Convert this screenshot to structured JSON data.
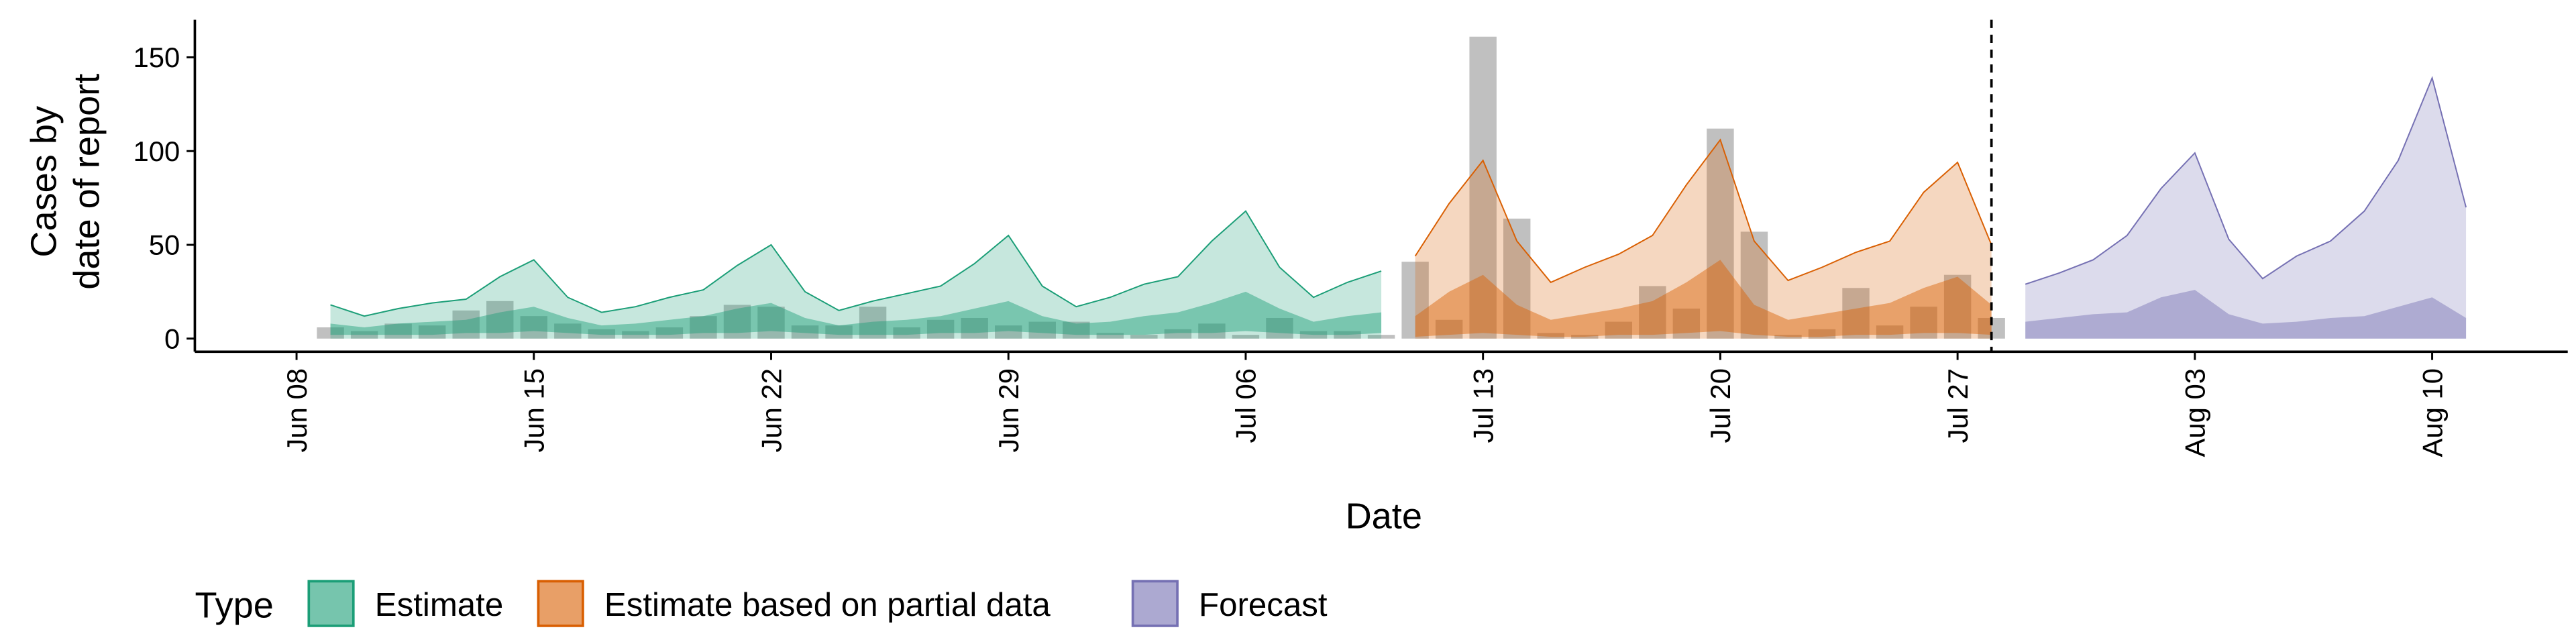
{
  "chart_data": {
    "type": "ribbon",
    "ylabel": [
      "Cases by",
      "date of report"
    ],
    "xlabel": "Date",
    "legend_title": "Type",
    "xlim": [
      "Jun 05",
      "Aug 14"
    ],
    "xticks": [
      "Jun 08",
      "Jun 15",
      "Jun 22",
      "Jun 29",
      "Jul 06",
      "Jul 13",
      "Jul 20",
      "Jul 27",
      "Aug 03",
      "Aug 10"
    ],
    "ylim": [
      -7,
      170
    ],
    "yticks": [
      0,
      50,
      100,
      150
    ],
    "date_line": "Jul 28",
    "bars": {
      "color": "#8c8c8c",
      "x": [
        "Jun 09",
        "Jun 10",
        "Jun 11",
        "Jun 12",
        "Jun 13",
        "Jun 14",
        "Jun 15",
        "Jun 16",
        "Jun 17",
        "Jun 18",
        "Jun 19",
        "Jun 20",
        "Jun 21",
        "Jun 22",
        "Jun 23",
        "Jun 24",
        "Jun 25",
        "Jun 26",
        "Jun 27",
        "Jun 28",
        "Jun 29",
        "Jun 30",
        "Jul 01",
        "Jul 02",
        "Jul 03",
        "Jul 04",
        "Jul 05",
        "Jul 06",
        "Jul 07",
        "Jul 08",
        "Jul 09",
        "Jul 10",
        "Jul 11",
        "Jul 12",
        "Jul 13",
        "Jul 14",
        "Jul 15",
        "Jul 16",
        "Jul 17",
        "Jul 18",
        "Jul 19",
        "Jul 20",
        "Jul 21",
        "Jul 22",
        "Jul 23",
        "Jul 24",
        "Jul 25",
        "Jul 26",
        "Jul 27",
        "Jul 28"
      ],
      "values": [
        6,
        4,
        8,
        7,
        15,
        20,
        12,
        8,
        5,
        4,
        6,
        12,
        18,
        17,
        7,
        7,
        17,
        6,
        10,
        11,
        7,
        9,
        9,
        3,
        2,
        5,
        8,
        2,
        11,
        4,
        4,
        2,
        41,
        10,
        161,
        64,
        3,
        2,
        9,
        28,
        16,
        112,
        57,
        2,
        5,
        27,
        7,
        17,
        34,
        11
      ]
    },
    "series": [
      {
        "name": "Estimate",
        "color": "#1b9e77",
        "x": [
          "Jun 09",
          "Jun 10",
          "Jun 11",
          "Jun 12",
          "Jun 13",
          "Jun 14",
          "Jun 15",
          "Jun 16",
          "Jun 17",
          "Jun 18",
          "Jun 19",
          "Jun 20",
          "Jun 21",
          "Jun 22",
          "Jun 23",
          "Jun 24",
          "Jun 25",
          "Jun 26",
          "Jun 27",
          "Jun 28",
          "Jun 29",
          "Jun 30",
          "Jul 01",
          "Jul 02",
          "Jul 03",
          "Jul 04",
          "Jul 05",
          "Jul 06",
          "Jul 07",
          "Jul 08",
          "Jul 09",
          "Jul 10"
        ],
        "ribbons": [
          {
            "lower": [
              0,
              0,
              0,
              0,
              0,
              0,
              0,
              0,
              0,
              0,
              0,
              0,
              0,
              0,
              0,
              0,
              0,
              0,
              0,
              0,
              0,
              0,
              0,
              0,
              0,
              0,
              0,
              0,
              0,
              0,
              0,
              0
            ],
            "upper": [
              18,
              12,
              16,
              19,
              21,
              33,
              42,
              22,
              14,
              17,
              22,
              26,
              39,
              50,
              25,
              15,
              20,
              24,
              28,
              40,
              55,
              28,
              17,
              22,
              29,
              33,
              52,
              68,
              38,
              22,
              30,
              36
            ]
          },
          {
            "lower": [
              2,
              2,
              2,
              2,
              3,
              3,
              4,
              3,
              2,
              2,
              2,
              3,
              3,
              4,
              3,
              2,
              2,
              2,
              3,
              3,
              4,
              3,
              2,
              2,
              2,
              3,
              3,
              4,
              3,
              2,
              2,
              3
            ],
            "upper": [
              8,
              6,
              8,
              9,
              10,
              14,
              17,
              11,
              7,
              8,
              10,
              12,
              16,
              19,
              11,
              7,
              9,
              10,
              12,
              16,
              20,
              12,
              8,
              9,
              12,
              14,
              19,
              25,
              16,
              9,
              12,
              14
            ]
          }
        ]
      },
      {
        "name": "Estimate based on partial data",
        "color": "#d95f02",
        "x": [
          "Jul 11",
          "Jul 12",
          "Jul 13",
          "Jul 14",
          "Jul 15",
          "Jul 16",
          "Jul 17",
          "Jul 18",
          "Jul 19",
          "Jul 20",
          "Jul 21",
          "Jul 22",
          "Jul 23",
          "Jul 24",
          "Jul 25",
          "Jul 26",
          "Jul 27",
          "Jul 28"
        ],
        "ribbons": [
          {
            "lower": [
              0,
              0,
              0,
              0,
              0,
              0,
              0,
              0,
              0,
              0,
              0,
              0,
              0,
              0,
              0,
              0,
              0,
              0
            ],
            "upper": [
              44,
              72,
              95,
              52,
              30,
              38,
              45,
              55,
              82,
              106,
              52,
              31,
              38,
              46,
              52,
              78,
              94,
              50
            ]
          },
          {
            "lower": [
              1,
              2,
              3,
              2,
              1,
              1,
              2,
              2,
              3,
              4,
              2,
              1,
              1,
              2,
              2,
              3,
              3,
              2
            ],
            "upper": [
              12,
              25,
              34,
              18,
              10,
              13,
              16,
              20,
              30,
              42,
              18,
              10,
              13,
              16,
              19,
              27,
              33,
              18
            ]
          }
        ]
      },
      {
        "name": "Forecast",
        "color": "#7570b3",
        "x": [
          "Jul 29",
          "Jul 30",
          "Jul 31",
          "Aug 01",
          "Aug 02",
          "Aug 03",
          "Aug 04",
          "Aug 05",
          "Aug 06",
          "Aug 07",
          "Aug 08",
          "Aug 09",
          "Aug 10",
          "Aug 11"
        ],
        "ribbons": [
          {
            "lower": [
              0,
              0,
              0,
              0,
              0,
              0,
              0,
              0,
              0,
              0,
              0,
              0,
              0,
              0
            ],
            "upper": [
              29,
              35,
              42,
              55,
              80,
              99,
              53,
              32,
              44,
              52,
              68,
              95,
              139,
              70
            ]
          },
          {
            "lower": [
              0,
              0,
              0,
              0,
              0,
              0,
              0,
              0,
              0,
              0,
              0,
              0,
              0,
              0
            ],
            "upper": [
              9,
              11,
              13,
              14,
              22,
              26,
              13,
              8,
              9,
              11,
              12,
              17,
              22,
              11
            ]
          }
        ]
      }
    ]
  }
}
